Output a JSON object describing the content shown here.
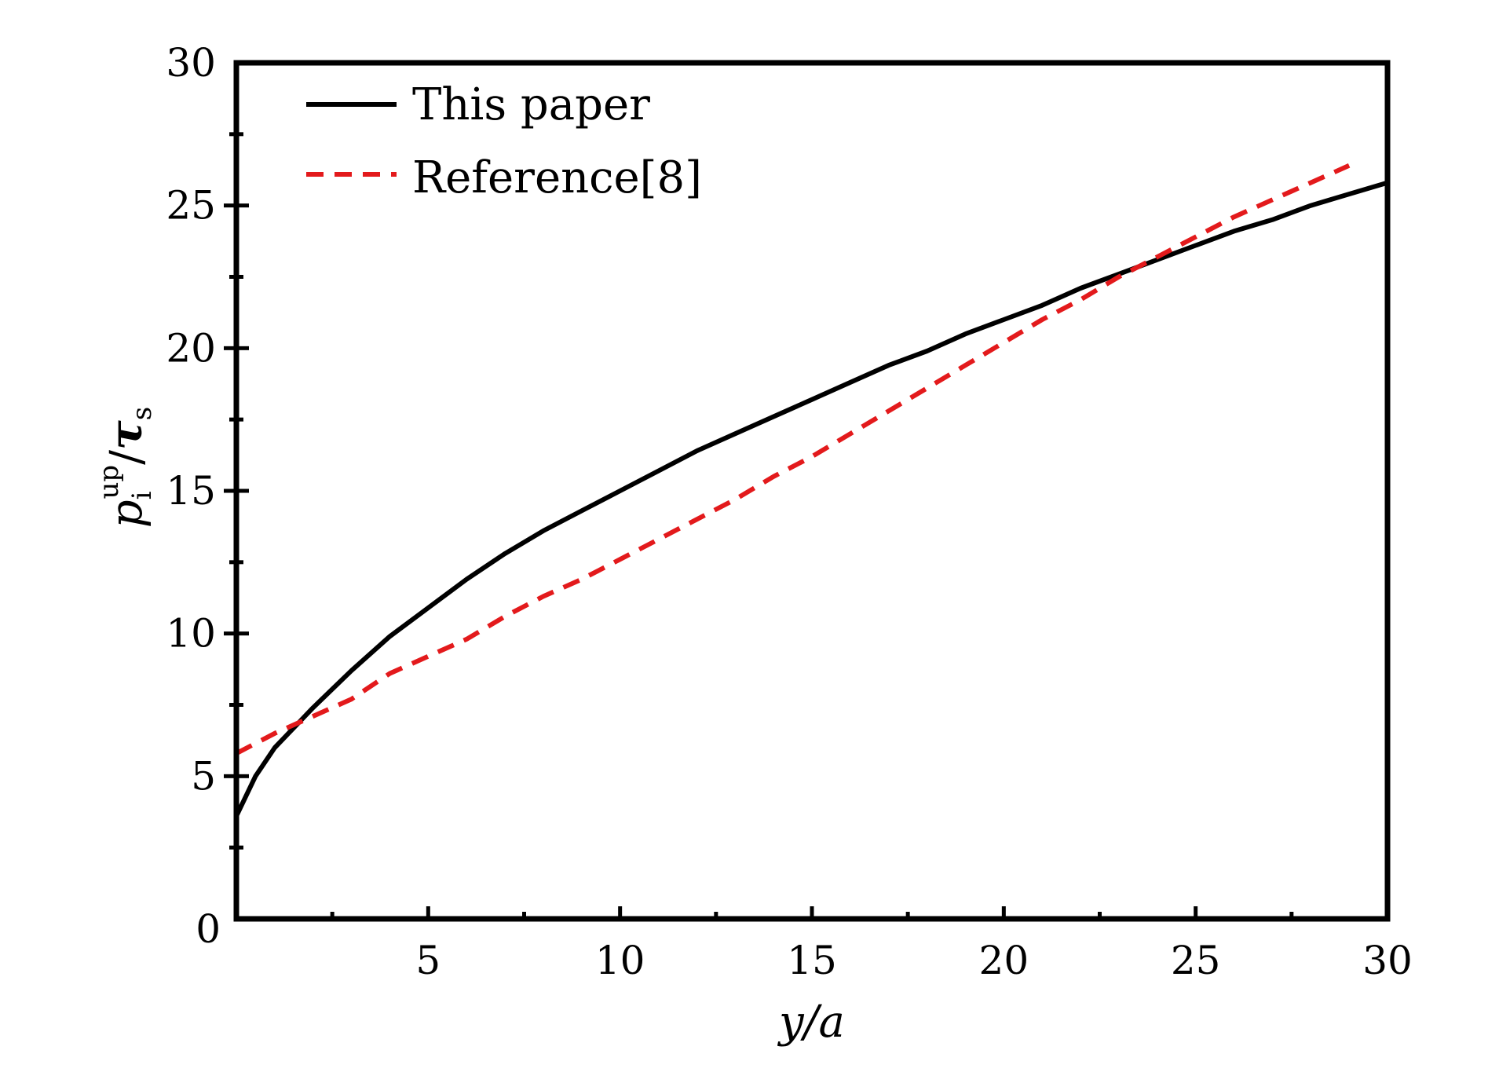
{
  "chart_data": {
    "type": "line",
    "xlabel": "y/a",
    "ylabel": {
      "base": "p",
      "sup": "up",
      "sub": "i",
      "slash": "/",
      "tau": "τ",
      "tau_sub": "s"
    },
    "xlim": [
      0,
      30
    ],
    "ylim": [
      0,
      30
    ],
    "x_ticks": [
      5,
      10,
      15,
      20,
      25,
      30
    ],
    "x_origin_label": "0",
    "y_ticks": [
      0,
      5,
      10,
      15,
      20,
      25,
      30
    ],
    "grid": false,
    "legend_position": "top-left",
    "series": [
      {
        "name": "This paper",
        "color": "#000000",
        "style": "solid",
        "x": [
          0,
          0.5,
          1,
          1.5,
          2,
          3,
          4,
          5,
          6,
          7,
          8,
          9,
          10,
          11,
          12,
          13,
          14,
          15,
          16,
          17,
          18,
          19,
          20,
          21,
          22,
          23,
          24,
          25,
          26,
          27,
          28,
          29,
          30
        ],
        "y": [
          3.6,
          5.0,
          6.0,
          6.7,
          7.4,
          8.7,
          9.9,
          10.9,
          11.9,
          12.8,
          13.6,
          14.3,
          15.0,
          15.7,
          16.4,
          17.0,
          17.6,
          18.2,
          18.8,
          19.4,
          19.9,
          20.5,
          21.0,
          21.5,
          22.1,
          22.6,
          23.1,
          23.6,
          24.1,
          24.5,
          25.0,
          25.4,
          25.8
        ]
      },
      {
        "name": "Reference[8]",
        "color": "#e31a1c",
        "style": "dashed",
        "x": [
          0,
          1,
          2,
          3,
          4,
          5,
          6,
          7,
          8,
          9,
          10,
          11,
          12,
          13,
          14,
          15,
          16,
          17,
          18,
          19,
          20,
          21,
          22,
          23,
          24,
          25,
          26,
          27,
          28,
          29
        ],
        "y": [
          5.8,
          6.5,
          7.1,
          7.7,
          8.6,
          9.2,
          9.8,
          10.6,
          11.3,
          11.9,
          12.6,
          13.3,
          14.0,
          14.7,
          15.5,
          16.2,
          17.0,
          17.8,
          18.6,
          19.4,
          20.2,
          21.0,
          21.7,
          22.5,
          23.2,
          23.9,
          24.6,
          25.2,
          25.8,
          26.4
        ]
      }
    ]
  }
}
